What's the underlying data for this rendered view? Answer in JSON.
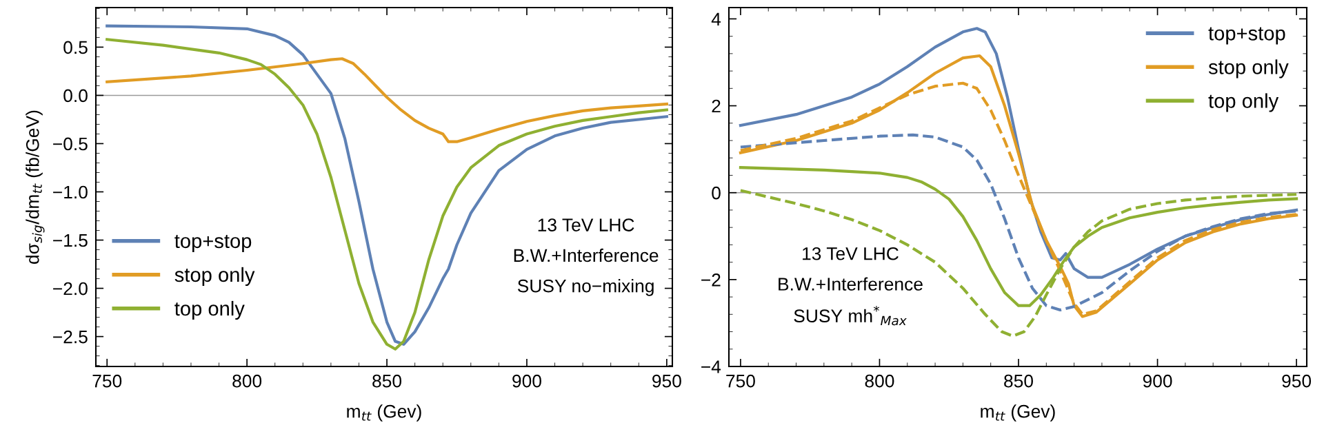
{
  "chart_data": [
    {
      "type": "line",
      "xlabel": "m$_{tt}$ (Gev)",
      "ylabel": "dσ$_{sig}$/dm$_{tt}$ (fb/GeV)",
      "xlim": [
        746,
        952
      ],
      "xticks": [
        750,
        800,
        850,
        900,
        950
      ],
      "ylim": [
        -2.81,
        0.91
      ],
      "yticks": [
        {
          "value": 0.5,
          "label": "0.5"
        },
        {
          "value": 0.0,
          "label": "0.0"
        },
        {
          "value": -0.5,
          "label": "−0.5"
        },
        {
          "value": -1.0,
          "label": "−1.0"
        },
        {
          "value": -1.5,
          "label": "−1.5"
        },
        {
          "value": -2.0,
          "label": "−2.0"
        },
        {
          "value": -2.5,
          "label": "−2.5"
        }
      ],
      "grid": false,
      "legend": "lower left",
      "line_style": "solid",
      "marker": "none",
      "ref_lines": [
        {
          "axis": "y",
          "value": 0,
          "color": "#999999"
        }
      ],
      "annotations": [
        "13 TeV LHC",
        "B.W.+Interference",
        "SUSY no−mixing"
      ],
      "series": [
        {
          "name": "top+stop",
          "color": "#5e81b5",
          "x": [
            750,
            780,
            800,
            810,
            815,
            820,
            825,
            830,
            835,
            840,
            845,
            850,
            853,
            856,
            860,
            865,
            870,
            872,
            875,
            880,
            890,
            900,
            910,
            920,
            930,
            940,
            950
          ],
          "values": [
            0.72,
            0.71,
            0.69,
            0.62,
            0.55,
            0.42,
            0.22,
            0.02,
            -0.45,
            -1.1,
            -1.8,
            -2.35,
            -2.55,
            -2.58,
            -2.45,
            -2.2,
            -1.9,
            -1.8,
            -1.55,
            -1.22,
            -0.78,
            -0.56,
            -0.42,
            -0.34,
            -0.28,
            -0.25,
            -0.22
          ]
        },
        {
          "name": "stop only",
          "color": "#e19c24",
          "x": [
            750,
            780,
            800,
            820,
            830,
            834,
            838,
            842,
            846,
            850,
            855,
            860,
            865,
            870,
            871,
            872,
            875,
            880,
            890,
            900,
            910,
            920,
            930,
            940,
            950
          ],
          "values": [
            0.14,
            0.2,
            0.26,
            0.33,
            0.37,
            0.38,
            0.33,
            0.22,
            0.1,
            -0.02,
            -0.15,
            -0.26,
            -0.34,
            -0.4,
            -0.44,
            -0.48,
            -0.48,
            -0.44,
            -0.35,
            -0.27,
            -0.21,
            -0.16,
            -0.13,
            -0.11,
            -0.09
          ]
        },
        {
          "name": "top only",
          "color": "#8fb032",
          "x": [
            750,
            770,
            790,
            800,
            805,
            810,
            815,
            820,
            825,
            830,
            835,
            840,
            845,
            850,
            853,
            856,
            860,
            865,
            870,
            875,
            880,
            890,
            900,
            910,
            920,
            930,
            940,
            950
          ],
          "values": [
            0.58,
            0.52,
            0.44,
            0.37,
            0.32,
            0.22,
            0.08,
            -0.1,
            -0.4,
            -0.85,
            -1.4,
            -1.95,
            -2.35,
            -2.58,
            -2.63,
            -2.55,
            -2.25,
            -1.7,
            -1.25,
            -0.95,
            -0.75,
            -0.52,
            -0.4,
            -0.32,
            -0.26,
            -0.22,
            -0.18,
            -0.15
          ]
        }
      ]
    },
    {
      "type": "line",
      "xlabel": "m$_{tt}$ (Gev)",
      "xlim": [
        745.8,
        953.7
      ],
      "xticks": [
        750,
        800,
        850,
        900,
        950
      ],
      "ylim": [
        -4,
        4.26
      ],
      "yticks": [
        {
          "value": -4,
          "label": "−4"
        },
        {
          "value": -2,
          "label": "−2"
        },
        0,
        2,
        4
      ],
      "grid": false,
      "legend": "upper right",
      "line_style": "solid",
      "marker": "none",
      "ref_lines": [
        {
          "axis": "y",
          "value": 0,
          "color": "#999999"
        }
      ],
      "annotations": [
        "13 TeV LHC",
        "B.W.+Interference",
        "SUSY mh$^{*}$$_{Max}$"
      ],
      "series": [
        {
          "name": "top+stop",
          "color": "#5e81b5",
          "x": [
            750,
            770,
            790,
            800,
            810,
            820,
            830,
            835,
            838,
            842,
            846,
            850,
            854,
            858,
            862,
            865,
            867,
            870,
            875,
            880,
            890,
            900,
            910,
            920,
            930,
            940,
            950
          ],
          "values": [
            1.55,
            1.8,
            2.2,
            2.5,
            2.9,
            3.35,
            3.7,
            3.78,
            3.7,
            3.2,
            2.2,
            1.0,
            -0.1,
            -0.9,
            -1.5,
            -1.55,
            -1.4,
            -1.75,
            -1.95,
            -1.95,
            -1.65,
            -1.3,
            -1.0,
            -0.8,
            -0.62,
            -0.5,
            -0.4
          ]
        },
        {
          "name": "stop only",
          "color": "#e19c24",
          "x": [
            750,
            770,
            790,
            800,
            810,
            820,
            830,
            836,
            840,
            845,
            850,
            855,
            860,
            865,
            868,
            870,
            873,
            878,
            890,
            900,
            910,
            920,
            930,
            940,
            950
          ],
          "values": [
            0.92,
            1.2,
            1.6,
            1.9,
            2.3,
            2.75,
            3.1,
            3.15,
            2.9,
            2.0,
            0.9,
            -0.3,
            -1.1,
            -1.7,
            -2.1,
            -2.6,
            -2.85,
            -2.75,
            -2.1,
            -1.55,
            -1.15,
            -0.9,
            -0.72,
            -0.6,
            -0.52
          ]
        },
        {
          "name": "top only",
          "color": "#8fb032",
          "x": [
            750,
            780,
            800,
            810,
            815,
            820,
            825,
            830,
            835,
            840,
            845,
            850,
            854,
            858,
            862,
            866,
            870,
            875,
            880,
            890,
            900,
            910,
            920,
            930,
            940,
            950
          ],
          "values": [
            0.58,
            0.52,
            0.45,
            0.35,
            0.25,
            0.08,
            -0.15,
            -0.55,
            -1.1,
            -1.75,
            -2.3,
            -2.6,
            -2.6,
            -2.35,
            -2.0,
            -1.6,
            -1.25,
            -1.0,
            -0.8,
            -0.58,
            -0.45,
            -0.35,
            -0.28,
            -0.22,
            -0.17,
            -0.14
          ]
        },
        {
          "color": "#5e81b5",
          "line_style": "dashed",
          "x": [
            750,
            780,
            800,
            812,
            820,
            830,
            835,
            840,
            845,
            850,
            855,
            860,
            865,
            870,
            880,
            890,
            900,
            910,
            920,
            930,
            940,
            950
          ],
          "values": [
            1.05,
            1.2,
            1.3,
            1.33,
            1.28,
            1.05,
            0.75,
            0.2,
            -0.6,
            -1.5,
            -2.2,
            -2.6,
            -2.7,
            -2.62,
            -2.3,
            -1.8,
            -1.35,
            -1.0,
            -0.78,
            -0.6,
            -0.48,
            -0.42
          ]
        },
        {
          "color": "#e19c24",
          "line_style": "dashed",
          "x": [
            750,
            770,
            790,
            800,
            810,
            820,
            830,
            835,
            840,
            845,
            850,
            855,
            860,
            865,
            870,
            873,
            878,
            890,
            900,
            910,
            920,
            930,
            940,
            950
          ],
          "values": [
            0.97,
            1.25,
            1.65,
            1.95,
            2.25,
            2.45,
            2.52,
            2.4,
            1.9,
            1.2,
            0.4,
            -0.35,
            -1.1,
            -1.8,
            -2.55,
            -2.8,
            -2.72,
            -2.05,
            -1.5,
            -1.1,
            -0.85,
            -0.68,
            -0.57,
            -0.5
          ]
        },
        {
          "color": "#8fb032",
          "line_style": "dashed",
          "x": [
            750,
            760,
            770,
            780,
            790,
            800,
            810,
            820,
            830,
            838,
            844,
            848,
            852,
            856,
            860,
            865,
            870,
            875,
            880,
            890,
            900,
            910,
            920,
            930,
            940,
            950
          ],
          "values": [
            0.05,
            -0.1,
            -0.25,
            -0.42,
            -0.62,
            -0.87,
            -1.2,
            -1.6,
            -2.2,
            -2.8,
            -3.2,
            -3.3,
            -3.2,
            -2.85,
            -2.35,
            -1.75,
            -1.25,
            -0.9,
            -0.65,
            -0.38,
            -0.25,
            -0.17,
            -0.12,
            -0.08,
            -0.06,
            -0.04
          ]
        }
      ]
    }
  ]
}
